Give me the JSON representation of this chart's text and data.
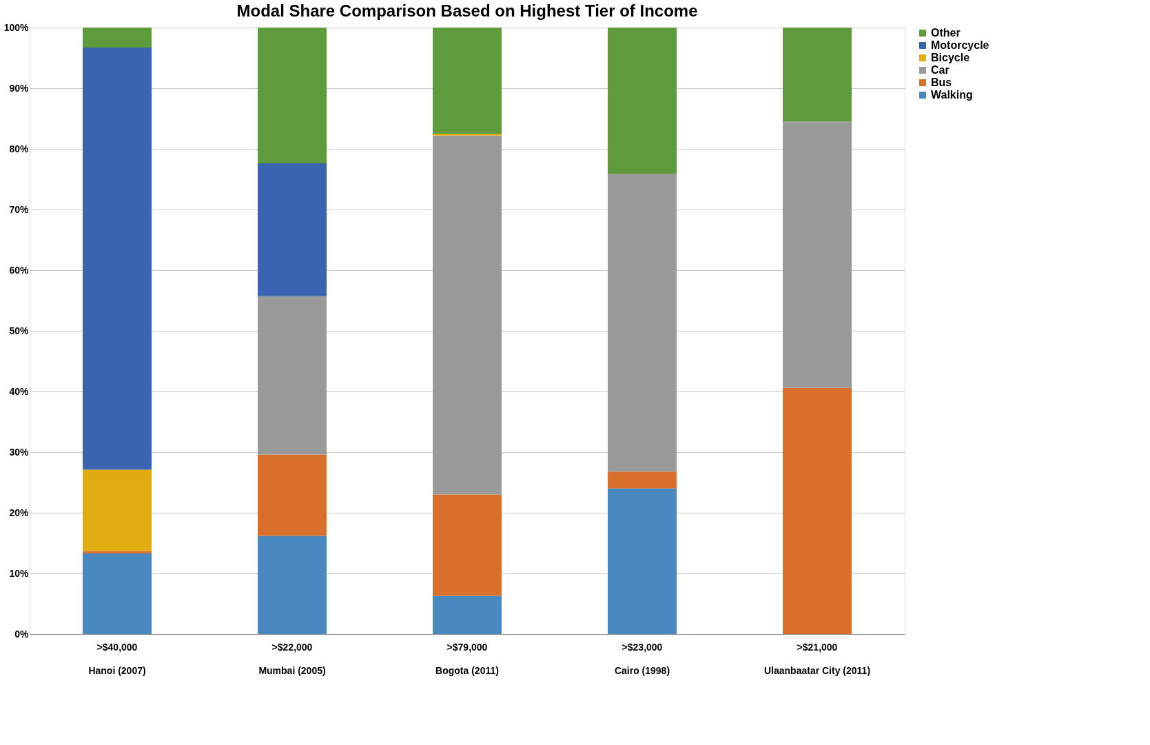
{
  "chart_data": {
    "type": "bar",
    "stacked": true,
    "title": "Modal Share Comparison Based on Highest Tier of Income",
    "categories": [
      ">$40,000\nHanoi (2007)",
      ">$22,000\nMumbai (2005)",
      ">$79,000\nBogota (2011)",
      ">$23,000\nCairo (1998)",
      ">$21,000\nUlaanbaatar City (2011)"
    ],
    "series": [
      {
        "name": "Walking",
        "color": "#4a88c0",
        "values": [
          13.3,
          16.2,
          6.3,
          24.0,
          0
        ]
      },
      {
        "name": "Bus",
        "color": "#d86f2a",
        "values": [
          0.4,
          13.4,
          16.7,
          2.8,
          40.6
        ]
      },
      {
        "name": "Car",
        "color": "#9a9a9a",
        "values": [
          0,
          26.1,
          59.2,
          49.1,
          43.9
        ]
      },
      {
        "name": "Bicycle",
        "color": "#e0ac12",
        "values": [
          13.4,
          0,
          0.3,
          0,
          0
        ]
      },
      {
        "name": "Motorcycle",
        "color": "#3a63b0",
        "values": [
          69.6,
          21.9,
          0,
          0,
          0
        ]
      },
      {
        "name": "Other",
        "color": "#5e9b3c",
        "values": [
          3.3,
          22.4,
          17.5,
          24.1,
          15.5
        ]
      }
    ],
    "ylim": [
      0,
      100
    ],
    "yticks": [
      {
        "value": 0,
        "label": "0%"
      },
      {
        "value": 10,
        "label": "10%"
      },
      {
        "value": 20,
        "label": "20%"
      },
      {
        "value": 30,
        "label": "30%"
      },
      {
        "value": 40,
        "label": "40%"
      },
      {
        "value": 50,
        "label": "50%"
      },
      {
        "value": 60,
        "label": "60%"
      },
      {
        "value": 70,
        "label": "70%"
      },
      {
        "value": 80,
        "label": "80%"
      },
      {
        "value": 90,
        "label": "90%"
      },
      {
        "value": 100,
        "label": "100%"
      }
    ],
    "grid": "y",
    "legend": "right"
  }
}
